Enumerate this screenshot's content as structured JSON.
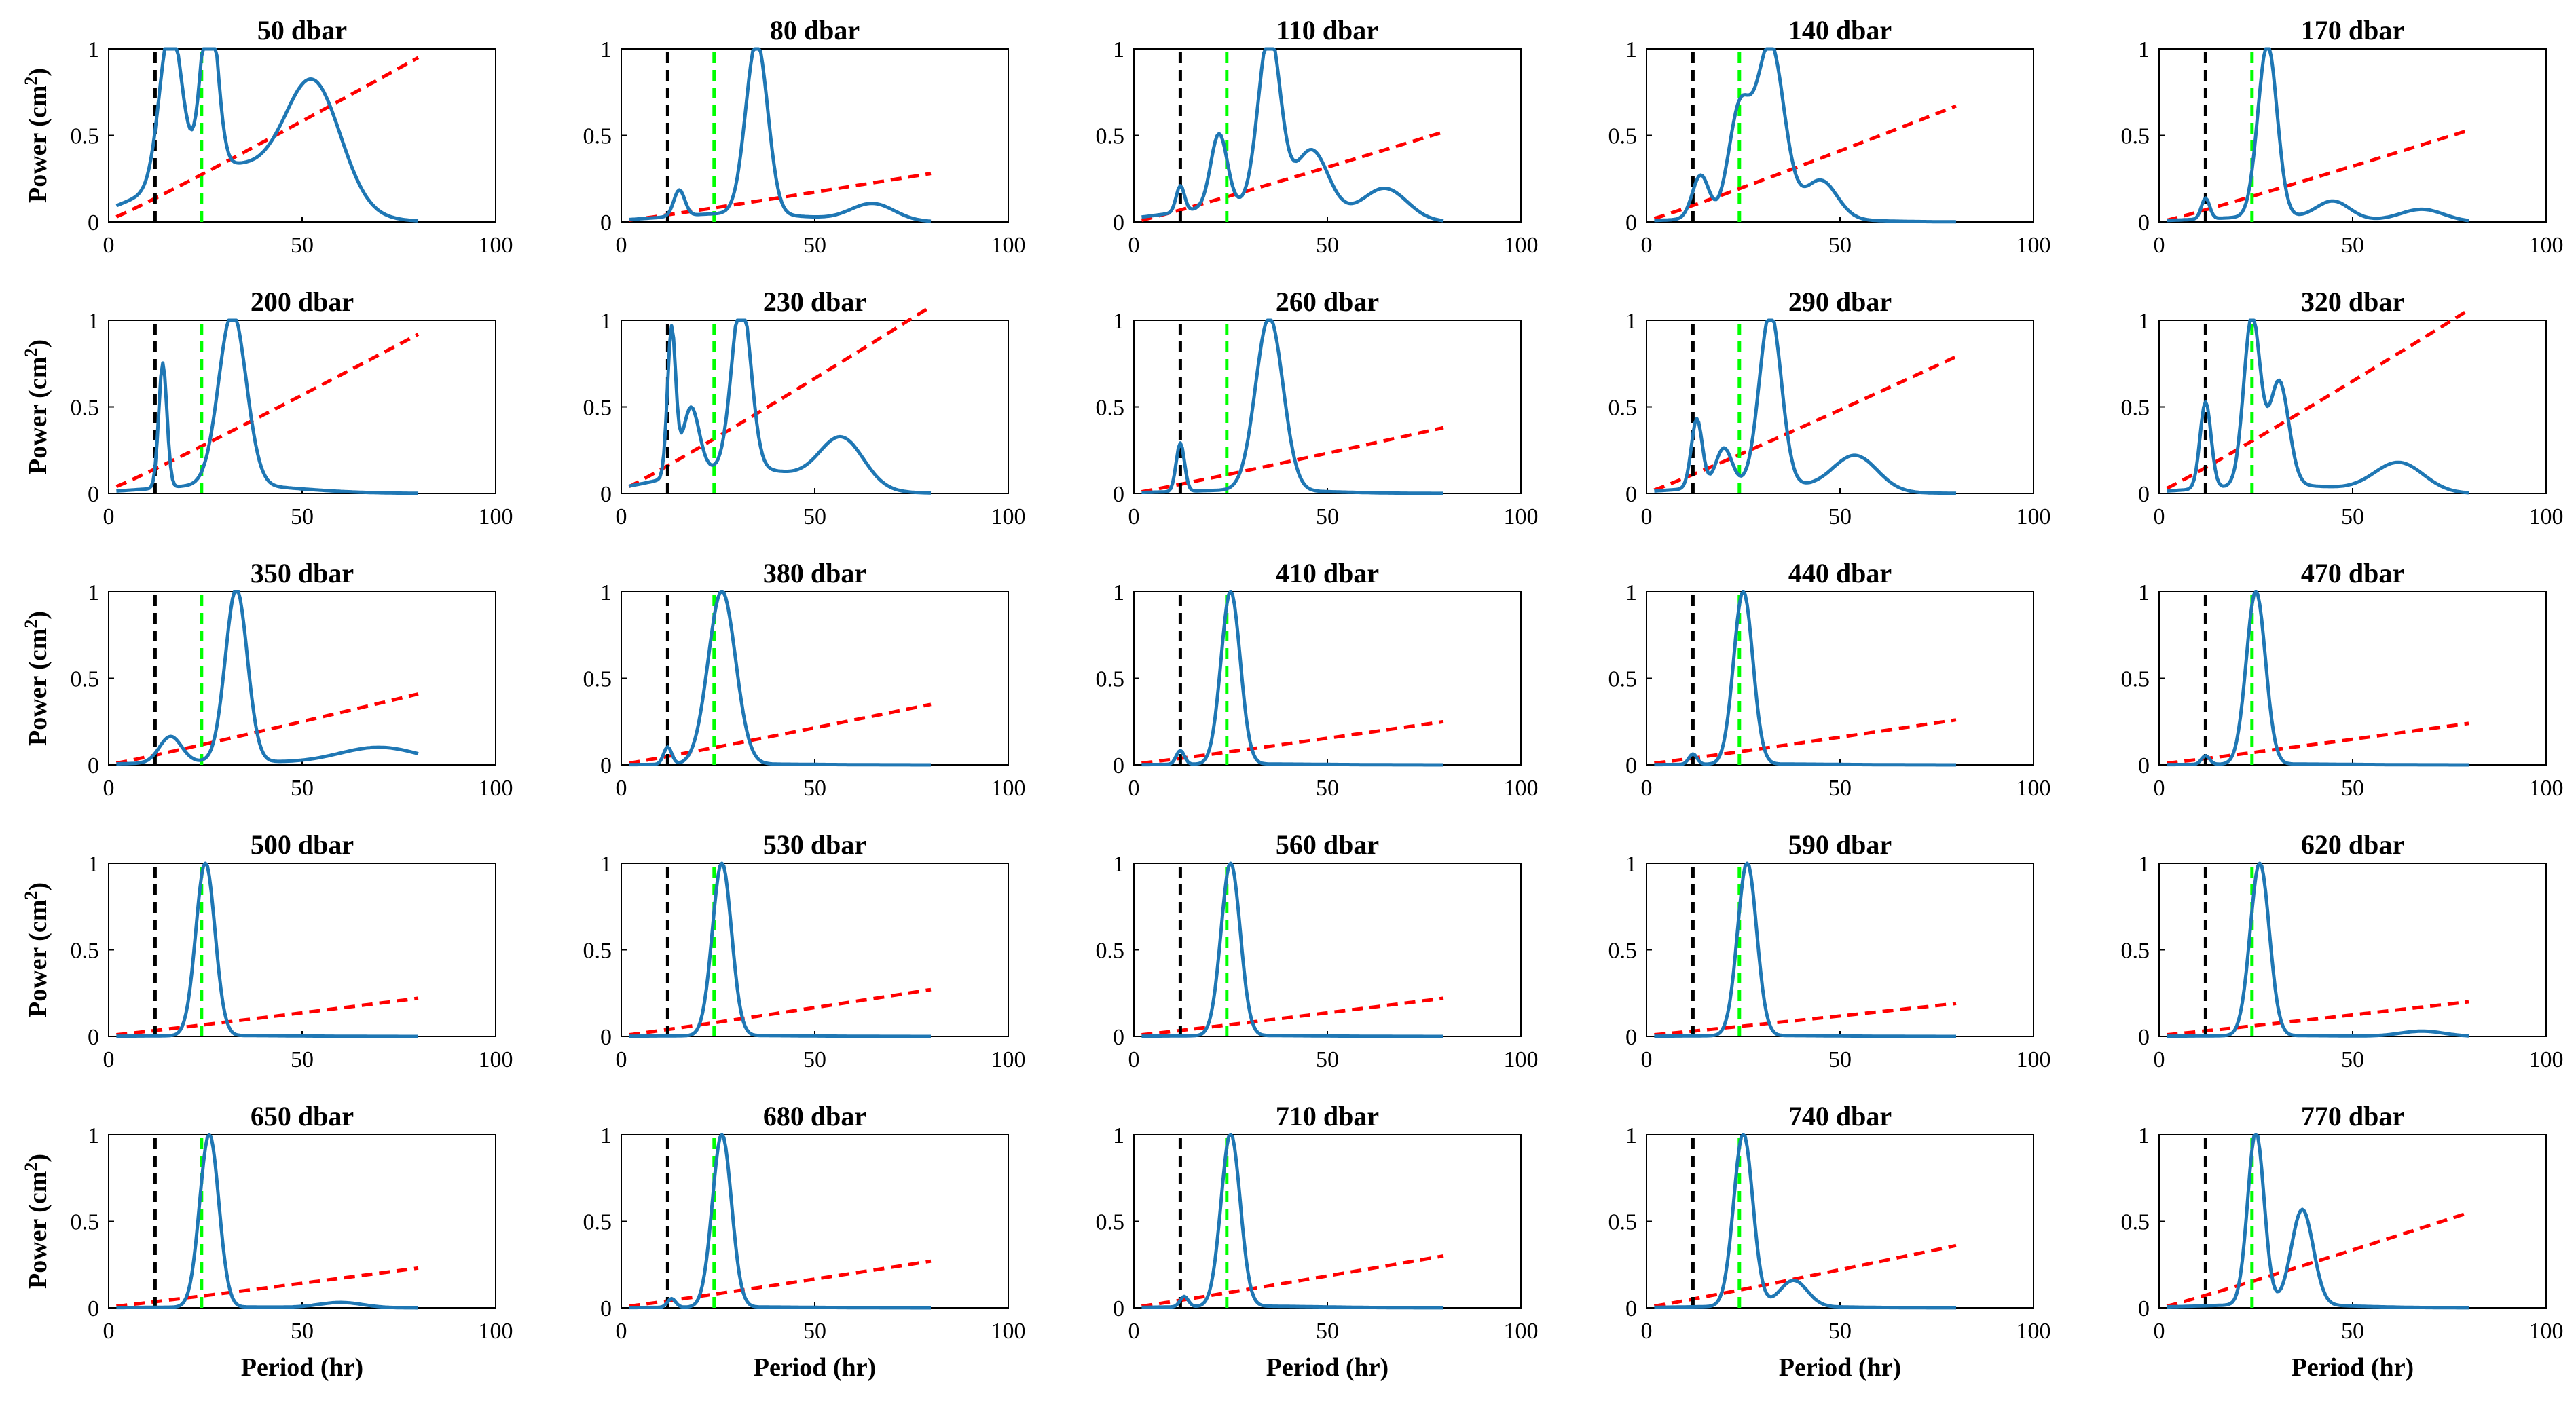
{
  "figure": {
    "ylabel_prefix": "Power (cm",
    "ylabel_sup": "2",
    "ylabel_suffix": ")",
    "xlabel": "Period (hr)",
    "xlim": [
      0,
      100
    ],
    "ylim": [
      0,
      1
    ],
    "xticks": [
      "0",
      "50",
      "100"
    ],
    "yticks": [
      "0",
      "0.5",
      "1"
    ],
    "colors": {
      "spectrum": "#1f77b4",
      "significance": "#ff0000",
      "inertial_line": "#000000",
      "diurnal_line": "#00ff00"
    },
    "reference_lines": {
      "inertial_period": 12,
      "diurnal_period": 24
    }
  },
  "chart_data": [
    {
      "type": "line",
      "title": "50 dbar",
      "peaks": [
        [
          16,
          0.9,
          4
        ],
        [
          26,
          0.98,
          3
        ],
        [
          53,
          0.68,
          10
        ]
      ],
      "base": 0.33,
      "sig_end": 0.95,
      "sig_start": 0.03
    },
    {
      "type": "line",
      "title": "80 dbar",
      "peaks": [
        [
          15,
          0.15,
          2
        ],
        [
          35,
          1.0,
          4
        ],
        [
          65,
          0.1,
          8
        ]
      ],
      "base": 0.05,
      "sig_end": 0.28,
      "sig_start": 0.01
    },
    {
      "type": "line",
      "title": "110 dbar",
      "peaks": [
        [
          12,
          0.15,
          1.5
        ],
        [
          22,
          0.42,
          3
        ],
        [
          35,
          1.0,
          4
        ],
        [
          46,
          0.35,
          6
        ],
        [
          65,
          0.18,
          8
        ]
      ],
      "base": 0.1,
      "sig_end": 0.52,
      "sig_start": 0.01
    },
    {
      "type": "line",
      "title": "140 dbar",
      "peaks": [
        [
          14,
          0.25,
          3
        ],
        [
          24,
          0.6,
          4
        ],
        [
          32,
          1.0,
          5
        ],
        [
          45,
          0.22,
          6
        ]
      ],
      "base": 0.03,
      "sig_end": 0.67,
      "sig_start": 0.02
    },
    {
      "type": "line",
      "title": "170 dbar",
      "peaks": [
        [
          12,
          0.12,
          1.5
        ],
        [
          28,
          1.0,
          3.5
        ],
        [
          45,
          0.1,
          6
        ],
        [
          68,
          0.07,
          8
        ]
      ],
      "base": 0.03,
      "sig_end": 0.53,
      "sig_start": 0.01
    },
    {
      "type": "line",
      "title": "200 dbar",
      "peaks": [
        [
          14,
          0.72,
          1.5
        ],
        [
          32,
          1.0,
          5
        ]
      ],
      "base": 0.05,
      "sig_end": 0.92,
      "sig_start": 0.04
    },
    {
      "type": "line",
      "title": "230 dbar",
      "peaks": [
        [
          13,
          0.85,
          1.5
        ],
        [
          18,
          0.38,
          3
        ],
        [
          31,
          0.98,
          3.5
        ],
        [
          57,
          0.28,
          8
        ]
      ],
      "base": 0.15,
      "sig_end": 1.08,
      "sig_start": 0.04
    },
    {
      "type": "line",
      "title": "260 dbar",
      "peaks": [
        [
          12,
          0.28,
          1.5
        ],
        [
          35,
          1.0,
          5
        ]
      ],
      "base": 0.02,
      "sig_end": 0.38,
      "sig_start": 0.01
    },
    {
      "type": "line",
      "title": "290 dbar",
      "peaks": [
        [
          13,
          0.4,
          2
        ],
        [
          20,
          0.22,
          3
        ],
        [
          32,
          1.0,
          4
        ],
        [
          54,
          0.2,
          8
        ]
      ],
      "base": 0.05,
      "sig_end": 0.79,
      "sig_start": 0.02
    },
    {
      "type": "line",
      "title": "320 dbar",
      "peaks": [
        [
          12,
          0.5,
          2
        ],
        [
          24,
          0.98,
          3
        ],
        [
          31,
          0.6,
          3.5
        ],
        [
          62,
          0.17,
          9
        ]
      ],
      "base": 0.05,
      "sig_end": 1.06,
      "sig_start": 0.03
    },
    {
      "type": "line",
      "title": "350 dbar",
      "peaks": [
        [
          16,
          0.15,
          4
        ],
        [
          33,
          1.0,
          4
        ],
        [
          70,
          0.1,
          15
        ]
      ],
      "base": 0.02,
      "sig_end": 0.41,
      "sig_start": 0.01
    },
    {
      "type": "line",
      "title": "380 dbar",
      "peaks": [
        [
          12,
          0.1,
          1.5
        ],
        [
          26,
          1.0,
          5
        ]
      ],
      "base": 0.005,
      "sig_end": 0.35,
      "sig_start": 0.01
    },
    {
      "type": "line",
      "title": "410 dbar",
      "peaks": [
        [
          12,
          0.08,
          1.5
        ],
        [
          25,
          1.0,
          3.5
        ]
      ],
      "base": 0.005,
      "sig_end": 0.25,
      "sig_start": 0.01
    },
    {
      "type": "line",
      "title": "440 dbar",
      "peaks": [
        [
          12,
          0.06,
          1.5
        ],
        [
          25,
          1.0,
          3.5
        ]
      ],
      "base": 0.005,
      "sig_end": 0.26,
      "sig_start": 0.01
    },
    {
      "type": "line",
      "title": "470 dbar",
      "peaks": [
        [
          12,
          0.05,
          1.5
        ],
        [
          25,
          1.0,
          3.5
        ]
      ],
      "base": 0.005,
      "sig_end": 0.24,
      "sig_start": 0.01
    },
    {
      "type": "line",
      "title": "500 dbar",
      "peaks": [
        [
          25,
          1.0,
          3.5
        ]
      ],
      "base": 0.005,
      "sig_end": 0.22,
      "sig_start": 0.01
    },
    {
      "type": "line",
      "title": "530 dbar",
      "peaks": [
        [
          26,
          1.0,
          3.5
        ]
      ],
      "base": 0.005,
      "sig_end": 0.27,
      "sig_start": 0.01
    },
    {
      "type": "line",
      "title": "560 dbar",
      "peaks": [
        [
          25,
          1.0,
          3.5
        ]
      ],
      "base": 0.005,
      "sig_end": 0.22,
      "sig_start": 0.01
    },
    {
      "type": "line",
      "title": "590 dbar",
      "peaks": [
        [
          26,
          1.0,
          3.5
        ]
      ],
      "base": 0.005,
      "sig_end": 0.19,
      "sig_start": 0.01
    },
    {
      "type": "line",
      "title": "620 dbar",
      "peaks": [
        [
          26,
          1.0,
          3.5
        ],
        [
          68,
          0.03,
          8
        ]
      ],
      "base": 0.005,
      "sig_end": 0.2,
      "sig_start": 0.01
    },
    {
      "type": "line",
      "title": "650 dbar",
      "peaks": [
        [
          26,
          1.0,
          3.5
        ],
        [
          60,
          0.03,
          8
        ]
      ],
      "base": 0.005,
      "sig_end": 0.23,
      "sig_start": 0.01
    },
    {
      "type": "line",
      "title": "680 dbar",
      "peaks": [
        [
          13,
          0.05,
          1.5
        ],
        [
          26,
          1.0,
          3.5
        ]
      ],
      "base": 0.005,
      "sig_end": 0.27,
      "sig_start": 0.01
    },
    {
      "type": "line",
      "title": "710 dbar",
      "peaks": [
        [
          13,
          0.06,
          1.5
        ],
        [
          25,
          1.0,
          3.5
        ]
      ],
      "base": 0.01,
      "sig_end": 0.3,
      "sig_start": 0.01
    },
    {
      "type": "line",
      "title": "740 dbar",
      "peaks": [
        [
          25,
          1.0,
          3.5
        ],
        [
          38,
          0.15,
          5
        ]
      ],
      "base": 0.01,
      "sig_end": 0.36,
      "sig_start": 0.01
    },
    {
      "type": "line",
      "title": "770 dbar",
      "peaks": [
        [
          25,
          1.0,
          3
        ],
        [
          37,
          0.55,
          4
        ]
      ],
      "base": 0.02,
      "sig_end": 0.55,
      "sig_start": 0.01
    }
  ]
}
